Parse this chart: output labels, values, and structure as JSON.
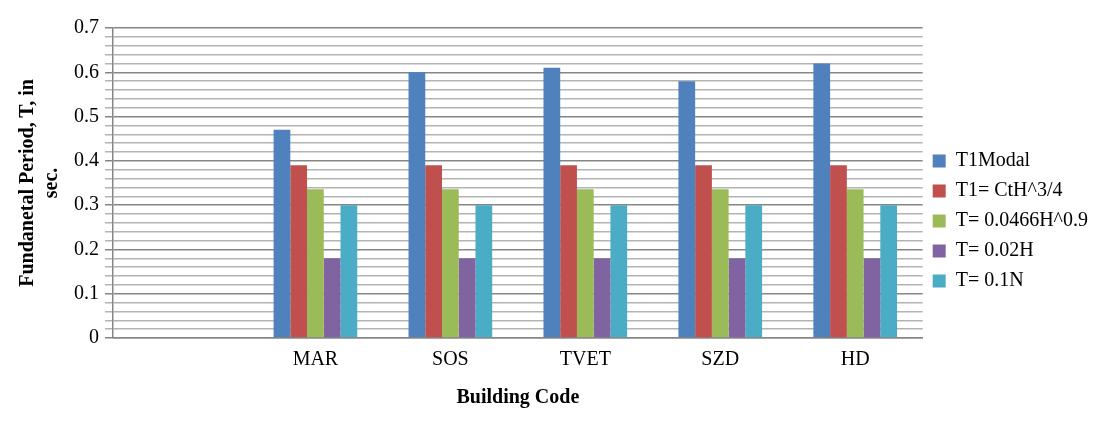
{
  "chart_data": {
    "type": "bar",
    "categories": [
      null,
      "MAR",
      "SOS",
      "TVET",
      "SZD",
      "HD"
    ],
    "series": [
      {
        "name": "T1Modal",
        "color": "#4f81bd",
        "values": [
          null,
          0.47,
          0.6,
          0.61,
          0.58,
          0.62
        ]
      },
      {
        "name": "T1= CtH^3/4",
        "color": "#c0504d",
        "values": [
          null,
          0.39,
          0.39,
          0.39,
          0.39,
          0.39
        ]
      },
      {
        "name": "T= 0.0466H^0.9",
        "color": "#9bbb59",
        "values": [
          null,
          0.336,
          0.336,
          0.336,
          0.336,
          0.336
        ]
      },
      {
        "name": "T= 0.02H",
        "color": "#8064a2",
        "values": [
          null,
          0.18,
          0.18,
          0.18,
          0.18,
          0.18
        ]
      },
      {
        "name": "T= 0.1N",
        "color": "#4bacc6",
        "values": [
          null,
          0.3,
          0.3,
          0.3,
          0.3,
          0.3
        ]
      }
    ],
    "xlabel": "Building Code",
    "ylabel": "Fundanetal Period, T, in sec.",
    "ylim": [
      0,
      0.7
    ],
    "yticks": [
      0,
      {
        "value": 0.02,
        "label": null
      },
      {
        "value": 0.04,
        "label": null
      },
      {
        "value": 0.06,
        "label": null
      },
      {
        "value": 0.08,
        "label": null
      },
      0.1,
      {
        "value": 0.12,
        "label": null
      },
      {
        "value": 0.14,
        "label": null
      },
      {
        "value": 0.16,
        "label": null
      },
      {
        "value": 0.18,
        "label": null
      },
      0.2,
      {
        "value": 0.22,
        "label": null
      },
      {
        "value": 0.24,
        "label": null
      },
      {
        "value": 0.26,
        "label": null
      },
      {
        "value": 0.28,
        "label": null
      },
      0.3,
      {
        "value": 0.32,
        "label": null
      },
      {
        "value": 0.34,
        "label": null
      },
      {
        "value": 0.36,
        "label": null
      },
      {
        "value": 0.38,
        "label": null
      },
      0.4,
      {
        "value": 0.42,
        "label": null
      },
      {
        "value": 0.44,
        "label": null
      },
      {
        "value": 0.46,
        "label": null
      },
      {
        "value": 0.48,
        "label": null
      },
      0.5,
      {
        "value": 0.52,
        "label": null
      },
      {
        "value": 0.54,
        "label": null
      },
      {
        "value": 0.56,
        "label": null
      },
      {
        "value": 0.58,
        "label": null
      },
      0.6,
      {
        "value": 0.62,
        "label": null
      },
      {
        "value": 0.64,
        "label": null
      },
      {
        "value": 0.66,
        "label": null
      },
      {
        "value": 0.68,
        "label": null
      },
      0.7
    ],
    "grid": "y",
    "legend": "right"
  }
}
